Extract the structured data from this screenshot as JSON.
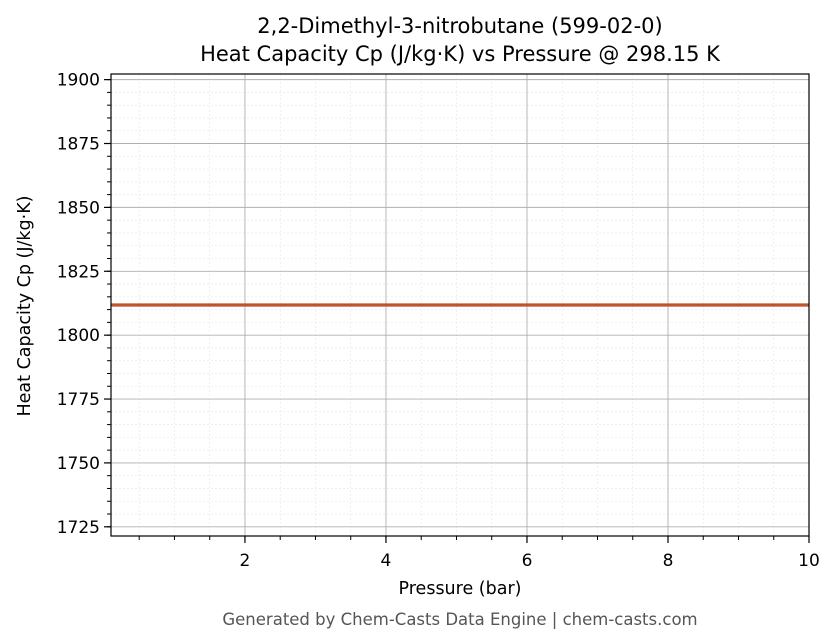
{
  "chart_data": {
    "type": "line",
    "title_line1": "2,2-Dimethyl-3-nitrobutane (599-02-0)",
    "title_line2": "Heat Capacity Cp (J/kg·K) vs Pressure @ 298.15 K",
    "xlabel": "Pressure (bar)",
    "ylabel": "Heat Capacity Cp (J/kg·K)",
    "xlim": [
      0.1,
      10
    ],
    "ylim": [
      1721.4,
      1902.2
    ],
    "x_ticks": [
      2,
      4,
      6,
      8,
      10
    ],
    "y_ticks": [
      1725,
      1750,
      1775,
      1800,
      1825,
      1850,
      1875,
      1900
    ],
    "x_minor_step": 0.5,
    "y_minor_step": 5,
    "grid": true,
    "series": [
      {
        "color": "#c0532b",
        "x": [
          0.1,
          1,
          2,
          3,
          4,
          5,
          6,
          7,
          8,
          9,
          10
        ],
        "y": [
          1811.8,
          1811.8,
          1811.8,
          1811.8,
          1811.8,
          1811.8,
          1811.8,
          1811.8,
          1811.8,
          1811.8,
          1811.8
        ]
      }
    ]
  },
  "footer": "Generated by Chem-Casts Data Engine | chem-casts.com"
}
